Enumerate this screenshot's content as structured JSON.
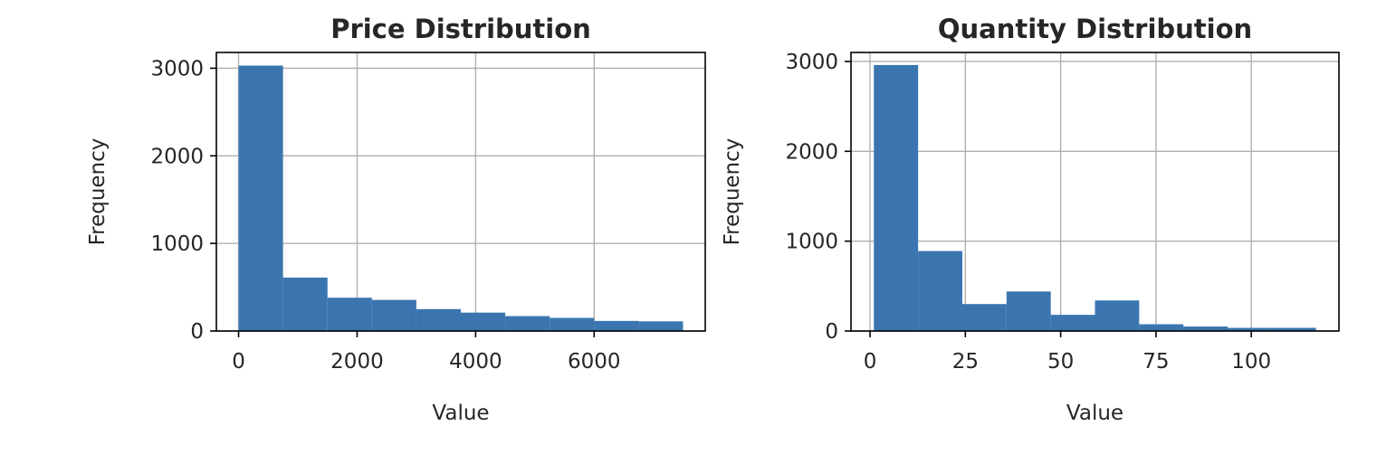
{
  "chart_data": [
    {
      "type": "bar",
      "title": "Price Distribution",
      "xlabel": "Value",
      "ylabel": "Frequency",
      "bin_edges": [
        0,
        750,
        1500,
        2250,
        3000,
        3750,
        4500,
        5250,
        6000,
        6750,
        7500
      ],
      "values": [
        3030,
        610,
        380,
        355,
        250,
        210,
        170,
        150,
        115,
        110
      ],
      "xlim": [
        -375,
        7875
      ],
      "ylim": [
        0,
        3180
      ],
      "xticks": [
        0,
        2000,
        4000,
        6000
      ],
      "xtick_labels": [
        "0",
        "2000",
        "4000",
        "6000"
      ],
      "yticks": [
        0,
        1000,
        2000,
        3000
      ],
      "ytick_labels": [
        "0",
        "1000",
        "2000",
        "3000"
      ],
      "grid": true,
      "color": "#3a75b0"
    },
    {
      "type": "bar",
      "title": "Quantity Distribution",
      "xlabel": "Value",
      "ylabel": "Frequency",
      "bin_edges": [
        1,
        12.6,
        24.2,
        35.8,
        47.4,
        59,
        70.6,
        82.2,
        93.8,
        105.4,
        117
      ],
      "values": [
        2960,
        890,
        300,
        440,
        180,
        340,
        75,
        50,
        35,
        35
      ],
      "xlim": [
        -5,
        123
      ],
      "ylim": [
        0,
        3100
      ],
      "xticks": [
        0,
        25,
        50,
        75,
        100
      ],
      "xtick_labels": [
        "0",
        "25",
        "50",
        "75",
        "100"
      ],
      "yticks": [
        0,
        1000,
        2000,
        3000
      ],
      "ytick_labels": [
        "0",
        "1000",
        "2000",
        "3000"
      ],
      "grid": true,
      "color": "#3a75b0"
    }
  ]
}
